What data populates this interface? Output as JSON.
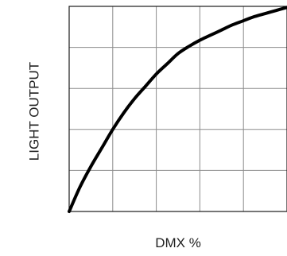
{
  "chart_data": {
    "type": "line",
    "title": "",
    "xlabel": "DMX %",
    "ylabel": "LIGHT OUTPUT",
    "xlim": [
      0,
      100
    ],
    "ylim": [
      0,
      100
    ],
    "grid": true,
    "x_divisions": 5,
    "y_divisions": 5,
    "series": [
      {
        "x": [
          0,
          5,
          10,
          15,
          20,
          25,
          30,
          35,
          40,
          45,
          50,
          55,
          60,
          65,
          70,
          75,
          80,
          85,
          90,
          95,
          100
        ],
        "y": [
          0,
          12,
          22,
          31,
          40,
          48,
          55,
          61,
          67,
          72,
          77,
          80.5,
          83.5,
          86,
          88.5,
          91,
          93,
          95,
          96.5,
          98,
          99.5
        ]
      }
    ]
  }
}
